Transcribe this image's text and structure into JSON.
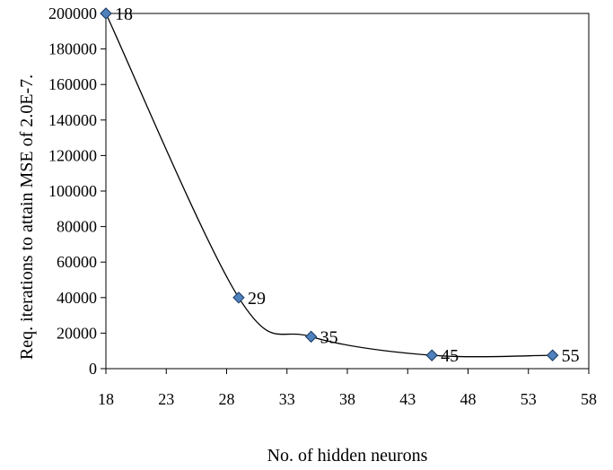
{
  "chart_data": {
    "type": "line",
    "xlabel": "No. of hidden neurons",
    "ylabel": "Req. iterations to attain MSE of 2.0E-7.",
    "xlim": [
      18,
      58
    ],
    "ylim": [
      0,
      200000
    ],
    "x_ticks": [
      "18",
      "23",
      "28",
      "33",
      "38",
      "43",
      "48",
      "53",
      "58"
    ],
    "y_ticks": [
      "0",
      "20000",
      "40000",
      "60000",
      "80000",
      "100000",
      "120000",
      "140000",
      "160000",
      "180000",
      "200000"
    ],
    "series": [
      {
        "x": [
          18,
          29,
          35,
          45,
          55
        ],
        "y": [
          200000,
          40000,
          18000,
          7500,
          7500
        ],
        "labels": [
          "18",
          "29",
          "35",
          "45",
          "55"
        ]
      }
    ],
    "marker": "diamond",
    "marker_color": "#4F81BD",
    "line_color": "#000000",
    "smooth": true,
    "grid": false,
    "legend": "none"
  }
}
